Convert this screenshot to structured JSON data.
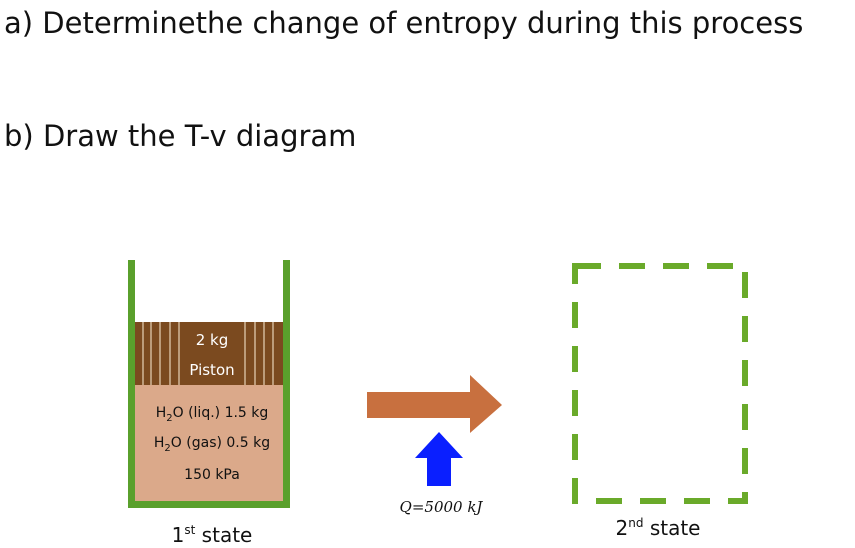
{
  "questions": [
    "a) Determinethe change of entropy during this process",
    "b) Draw the T-v diagram"
  ],
  "state1": {
    "piston": {
      "mass": "2 kg",
      "label": "Piston"
    },
    "contents": [
      [
        "H",
        "2",
        "O (liq.) 1.5 kg"
      ],
      [
        "H",
        "2",
        "O (gas) 0.5 kg"
      ]
    ],
    "pressure": "150 kPa",
    "label": [
      "1",
      "st",
      " state"
    ]
  },
  "heat": "Q=5000 kJ",
  "state2": {
    "label": [
      "2",
      "nd",
      " state"
    ]
  }
}
